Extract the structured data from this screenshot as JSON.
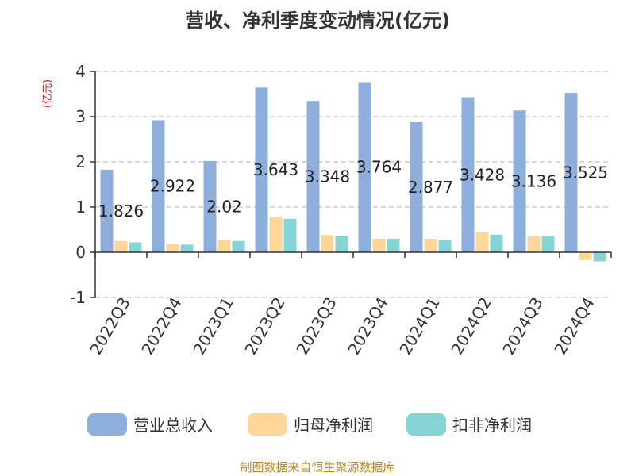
{
  "chart_data": {
    "type": "bar",
    "title": "营收、净利季度变动情况(亿元)",
    "ylabel": "(亿元)",
    "ylim": [
      -1,
      4
    ],
    "yticks": [
      -1,
      0,
      1,
      2,
      3,
      4
    ],
    "grid": true,
    "legend_position": "bottom",
    "categories": [
      "2022Q3",
      "2022Q4",
      "2023Q1",
      "2023Q2",
      "2023Q3",
      "2023Q4",
      "2024Q1",
      "2024Q2",
      "2024Q3",
      "2024Q4"
    ],
    "series": [
      {
        "name": "营业总收入",
        "color": "#8eaedb",
        "values": [
          1.826,
          2.922,
          2.02,
          3.643,
          3.348,
          3.764,
          2.877,
          3.428,
          3.136,
          3.525
        ]
      },
      {
        "name": "归母净利润",
        "color": "#ffd699",
        "values": [
          0.25,
          0.18,
          0.28,
          0.78,
          0.38,
          0.3,
          0.3,
          0.44,
          0.35,
          -0.17
        ]
      },
      {
        "name": "扣非净利润",
        "color": "#87d4d6",
        "values": [
          0.22,
          0.17,
          0.25,
          0.74,
          0.37,
          0.3,
          0.28,
          0.39,
          0.36,
          -0.2
        ]
      }
    ],
    "data_labels": [
      "1.826",
      "2.922",
      "2.02",
      "3.643",
      "3.348",
      "3.764",
      "2.877",
      "3.428",
      "3.136",
      "3.525"
    ]
  },
  "ylabel_color": "#cc2222",
  "source": {
    "text": "制图数据来自恒生聚源数据库",
    "color": "#b8862b"
  }
}
